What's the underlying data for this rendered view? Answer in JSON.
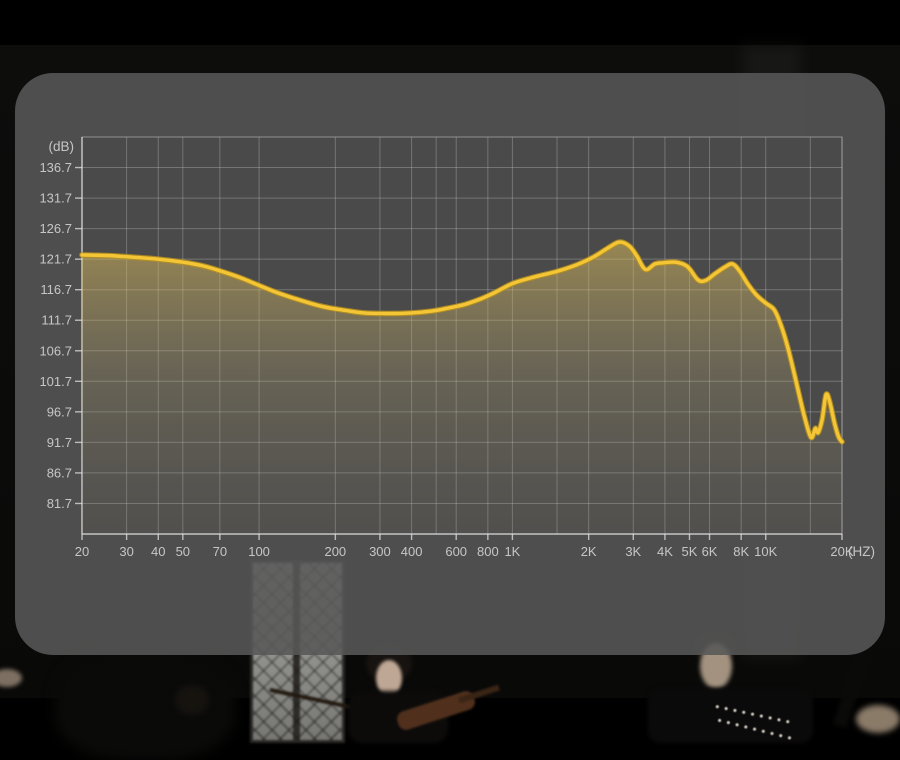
{
  "chart_data": {
    "type": "line",
    "title": "",
    "x_axis": {
      "unit_label": "(HZ)",
      "scale": "log",
      "min": 20,
      "max": 20000,
      "ticks": [
        {
          "label": "20",
          "f": 20
        },
        {
          "label": "30",
          "f": 30
        },
        {
          "label": "40",
          "f": 40
        },
        {
          "label": "50",
          "f": 50
        },
        {
          "label": "70",
          "f": 70
        },
        {
          "label": "100",
          "f": 100
        },
        {
          "label": "200",
          "f": 200
        },
        {
          "label": "300",
          "f": 300
        },
        {
          "label": "400",
          "f": 400
        },
        {
          "label": "600",
          "f": 600
        },
        {
          "label": "800",
          "f": 800
        },
        {
          "label": "1K",
          "f": 1000
        },
        {
          "label": "2K",
          "f": 2000
        },
        {
          "label": "3K",
          "f": 3000
        },
        {
          "label": "4K",
          "f": 4000
        },
        {
          "label": "5K",
          "f": 5000
        },
        {
          "label": "6K",
          "f": 6000
        },
        {
          "label": "8K",
          "f": 8000
        },
        {
          "label": "10K",
          "f": 10000
        },
        {
          "label": "20K",
          "f": 20000
        }
      ],
      "grid_freqs": [
        20,
        30,
        40,
        50,
        70,
        100,
        200,
        300,
        400,
        500,
        600,
        800,
        1000,
        1500,
        2000,
        3000,
        4000,
        5000,
        6000,
        8000,
        10000,
        15000,
        20000
      ]
    },
    "y_axis": {
      "unit_label": "(dB)",
      "top": 141.7,
      "bottom": 76.7,
      "tick_values": [
        136.7,
        131.7,
        126.7,
        121.7,
        116.7,
        111.7,
        106.7,
        101.7,
        96.7,
        91.7,
        86.7,
        81.7
      ]
    },
    "legend": "none",
    "grid": "on",
    "series": [
      {
        "name": "frequency-response-curve",
        "points": [
          [
            20,
            122.4
          ],
          [
            25,
            122.3
          ],
          [
            30,
            122.1
          ],
          [
            40,
            121.7
          ],
          [
            50,
            121.2
          ],
          [
            60,
            120.6
          ],
          [
            70,
            119.8
          ],
          [
            85,
            118.6
          ],
          [
            100,
            117.4
          ],
          [
            120,
            116.1
          ],
          [
            150,
            114.8
          ],
          [
            180,
            113.9
          ],
          [
            220,
            113.3
          ],
          [
            260,
            112.9
          ],
          [
            320,
            112.8
          ],
          [
            400,
            112.9
          ],
          [
            480,
            113.2
          ],
          [
            560,
            113.7
          ],
          [
            650,
            114.3
          ],
          [
            750,
            115.2
          ],
          [
            850,
            116.2
          ],
          [
            1000,
            117.7
          ],
          [
            1200,
            118.7
          ],
          [
            1500,
            119.7
          ],
          [
            1800,
            120.8
          ],
          [
            2100,
            122.1
          ],
          [
            2400,
            123.6
          ],
          [
            2650,
            124.5
          ],
          [
            2900,
            123.8
          ],
          [
            3100,
            122.2
          ],
          [
            3350,
            120.0
          ],
          [
            3650,
            120.9
          ],
          [
            3950,
            121.1
          ],
          [
            4400,
            121.2
          ],
          [
            4900,
            120.5
          ],
          [
            5400,
            118.3
          ],
          [
            5800,
            118.2
          ],
          [
            6300,
            119.3
          ],
          [
            6900,
            120.4
          ],
          [
            7400,
            120.9
          ],
          [
            7900,
            119.7
          ],
          [
            8500,
            117.6
          ],
          [
            9200,
            115.8
          ],
          [
            10000,
            114.5
          ],
          [
            10800,
            113.4
          ],
          [
            11500,
            110.8
          ],
          [
            12300,
            106.8
          ],
          [
            13200,
            101.5
          ],
          [
            14200,
            96.0
          ],
          [
            15100,
            92.5
          ],
          [
            15700,
            94.0
          ],
          [
            16100,
            93.3
          ],
          [
            16700,
            95.5
          ],
          [
            17300,
            99.5
          ],
          [
            17900,
            98.3
          ],
          [
            18700,
            94.8
          ],
          [
            19400,
            92.6
          ],
          [
            20000,
            91.8
          ]
        ]
      }
    ]
  },
  "colors": {
    "curve": "#f4c636",
    "curve_edge": "#b9901f",
    "fill_top": "rgba(233,198,90,0.50)",
    "fill_mid": "rgba(190,172,115,0.26)",
    "fill_bottom": "rgba(140,133,110,0.10)",
    "grid_line": "rgba(205,205,205,0.32)",
    "plot_border": "rgba(210,210,210,0.50)",
    "axis_line": "rgba(225,225,225,0.75)",
    "tick_label": "#c6c6c6",
    "plot_bg": "rgba(0,0,0,0.05)",
    "panel_bg": "rgba(88,88,88,0.88)"
  }
}
